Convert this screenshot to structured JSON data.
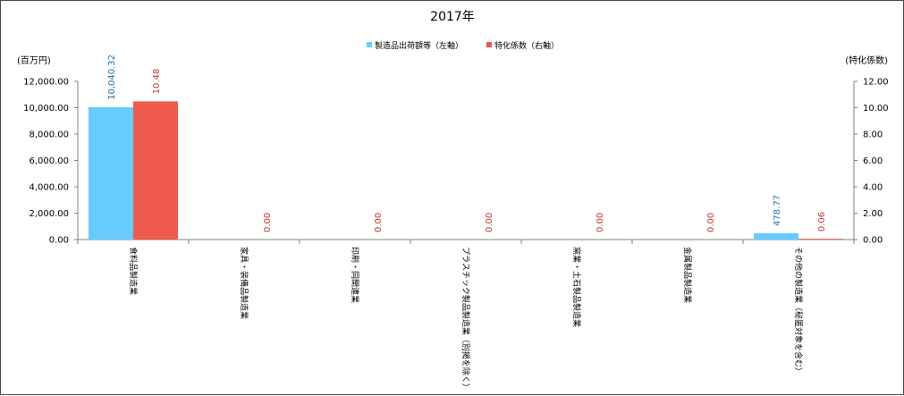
{
  "chart_data": {
    "type": "bar",
    "title": "2017年",
    "ylabel": "(百万円)",
    "y2label": "(特化係数)",
    "categories": [
      "食料品製造業",
      "家具・装備品製造業",
      "印刷・同関連業",
      "プラスチック製品製造業（別掲を除く）",
      "窯業・土石製品製造業",
      "金属製品製造業",
      "その他の製造業（秘匿対象を含む）"
    ],
    "series": [
      {
        "name": "製造品出荷額等（左軸）",
        "axis": "left",
        "color": "#66ccff",
        "values": [
          10040.32,
          null,
          null,
          null,
          null,
          null,
          478.77
        ],
        "labels": [
          "10,040.32",
          "",
          "",
          "",
          "",
          "",
          "478.77"
        ],
        "label_color": "#1f6fae"
      },
      {
        "name": "特化係数（右軸）",
        "axis": "right",
        "color": "#ee5a4c",
        "values": [
          10.48,
          0,
          0,
          0,
          0,
          0,
          0.06
        ],
        "labels": [
          "10.48",
          "0.00",
          "0.00",
          "0.00",
          "0.00",
          "0.00",
          "0.06"
        ],
        "label_color": "#c0392b"
      }
    ],
    "ylim": [
      0,
      12000
    ],
    "y2lim": [
      0,
      12
    ],
    "yticks": [
      "0.00",
      "2,000.00",
      "4,000.00",
      "6,000.00",
      "8,000.00",
      "10,000.00",
      "12,000.00"
    ],
    "y2ticks": [
      "0.00",
      "2.00",
      "4.00",
      "6.00",
      "8.00",
      "10.00",
      "12.00"
    ],
    "legend_position": "top-center",
    "grid": false
  }
}
